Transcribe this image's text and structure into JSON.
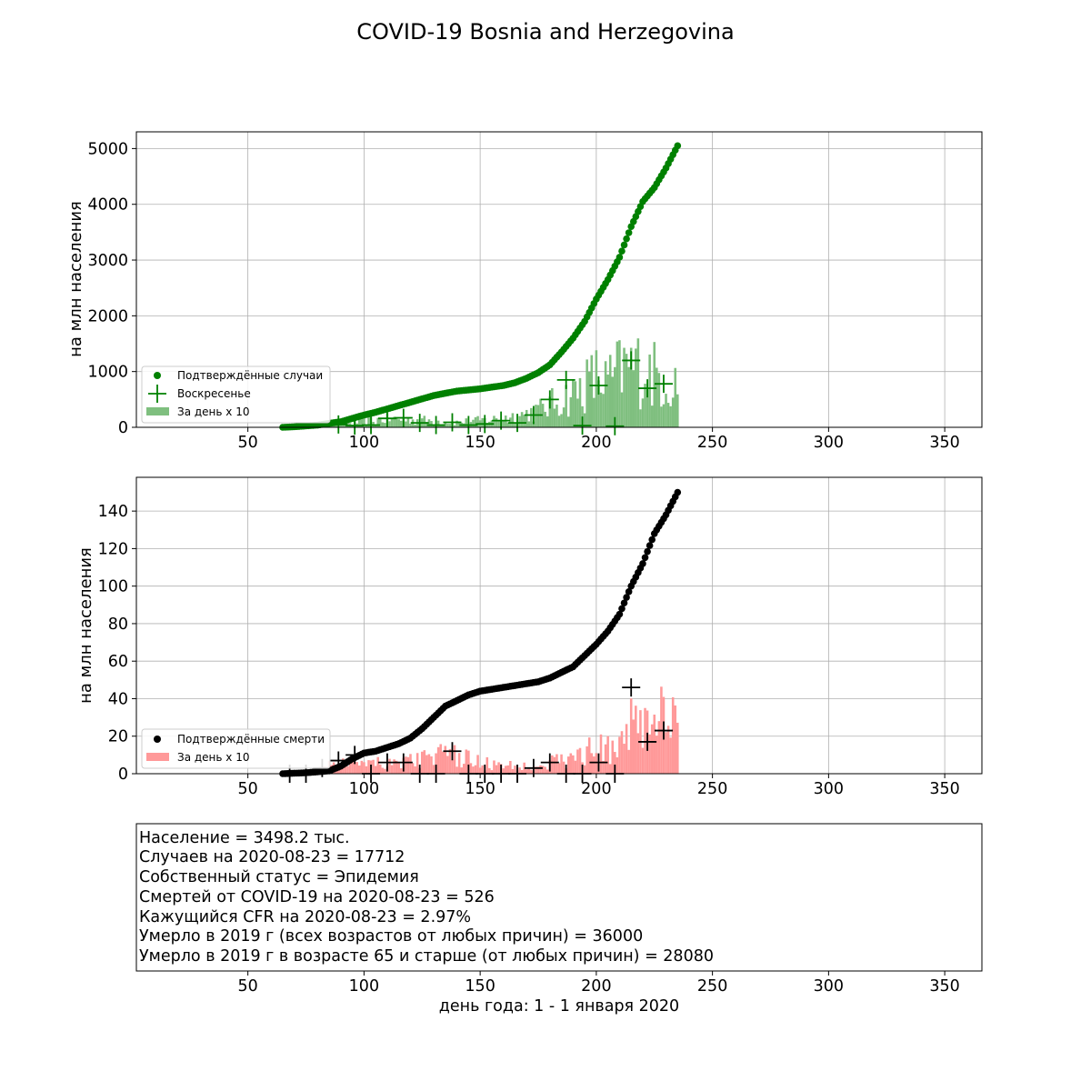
{
  "figure": {
    "title": "COVID-19 Bosnia and Herzegovina",
    "xlabel": "день года: 1 - 1 января 2020"
  },
  "colors": {
    "cases": "#008000",
    "cases_bar": "#7fbf7f",
    "deaths": "#000000",
    "deaths_bar": "#ff9999",
    "grid": "#b0b0b0"
  },
  "info": {
    "lines": [
      "Население = 3498.2 тыс.",
      "Случаев на 2020-08-23 = 17712",
      "Собственный статус = Эпидемия",
      "Смертей от COVID-19 на 2020-08-23 = 526",
      "Кажущийся CFR на 2020-08-23 = 2.97%",
      "Умерло в 2019 г (всех возрастов от любых причин) = 36000",
      "Умерло в 2019 г в возрасте 65 и старше (от любых причин) = 28080"
    ]
  },
  "chart_data": [
    {
      "type": "scatter",
      "ylabel": "на млн населения",
      "xlim": [
        2,
        366
      ],
      "ylim": [
        0,
        5300
      ],
      "xticks": [
        50,
        100,
        150,
        200,
        250,
        300,
        350
      ],
      "yticks": [
        0,
        1000,
        2000,
        3000,
        4000,
        5000
      ],
      "grid": true,
      "legend": {
        "position": "lower-left",
        "entries": [
          {
            "marker": "dot",
            "label": "Подтверждённые случаи"
          },
          {
            "marker": "plus",
            "label": "Воскресенье"
          },
          {
            "marker": "bar",
            "label": "За день x 10"
          }
        ]
      },
      "cumulative_anchors": {
        "x": [
          65,
          70,
          80,
          90,
          95,
          100,
          105,
          110,
          115,
          120,
          125,
          130,
          140,
          150,
          155,
          160,
          165,
          170,
          175,
          180,
          185,
          190,
          195,
          200,
          205,
          210,
          215,
          220,
          225,
          230,
          235
        ],
        "y": [
          0,
          10,
          40,
          100,
          160,
          220,
          270,
          330,
          390,
          450,
          510,
          570,
          650,
          690,
          720,
          750,
          800,
          880,
          980,
          1120,
          1350,
          1600,
          1900,
          2300,
          2650,
          3050,
          3600,
          4050,
          4300,
          4650,
          5050
        ]
      },
      "daily_x10_anchors": {
        "x": [
          65,
          80,
          95,
          110,
          125,
          140,
          155,
          165,
          175,
          185,
          190,
          195,
          200,
          205,
          210,
          215,
          220,
          225,
          230,
          235
        ],
        "y": [
          0,
          10,
          80,
          150,
          130,
          90,
          140,
          200,
          300,
          500,
          600,
          750,
          900,
          800,
          1000,
          1100,
          1050,
          950,
          850,
          800
        ]
      },
      "sundays": {
        "x": [
          89,
          96,
          103,
          110,
          117,
          124,
          131,
          138,
          145,
          152,
          159,
          166,
          173,
          180,
          187,
          194,
          201,
          208,
          215,
          222,
          229
        ],
        "y": [
          50,
          30,
          40,
          160,
          170,
          80,
          40,
          90,
          40,
          60,
          120,
          80,
          220,
          500,
          850,
          30,
          750,
          20,
          1200,
          700,
          780
        ]
      }
    },
    {
      "type": "scatter",
      "ylabel": "на млн населения",
      "xlim": [
        2,
        366
      ],
      "ylim": [
        0,
        158
      ],
      "xticks": [
        50,
        100,
        150,
        200,
        250,
        300,
        350
      ],
      "yticks": [
        0,
        20,
        40,
        60,
        80,
        100,
        120,
        140
      ],
      "grid": true,
      "legend": {
        "position": "lower-left",
        "entries": [
          {
            "marker": "dot",
            "label": "Подтверждённые смерти"
          },
          {
            "marker": "bar",
            "label": "За день x 10"
          }
        ]
      },
      "cumulative_anchors": {
        "x": [
          65,
          75,
          85,
          90,
          95,
          100,
          105,
          110,
          115,
          120,
          125,
          130,
          135,
          140,
          145,
          150,
          155,
          160,
          165,
          170,
          175,
          180,
          185,
          190,
          195,
          200,
          205,
          210,
          215,
          220,
          225,
          230,
          235
        ],
        "y": [
          0,
          0.5,
          1.5,
          4,
          8,
          11,
          12,
          14,
          16,
          19,
          24,
          30,
          36,
          39,
          42,
          44,
          45,
          46,
          47,
          48,
          49,
          51,
          54,
          57,
          63,
          69,
          76,
          85,
          100,
          112,
          128,
          138,
          150
        ]
      },
      "daily_x10_anchors": {
        "x": [
          65,
          80,
          90,
          100,
          110,
          120,
          130,
          140,
          150,
          160,
          170,
          180,
          190,
          200,
          205,
          210,
          215,
          220,
          225,
          230,
          235
        ],
        "y": [
          0,
          2,
          6,
          8,
          6,
          7,
          10,
          9,
          6,
          4,
          4,
          6,
          8,
          14,
          12,
          18,
          30,
          25,
          35,
          25,
          25
        ]
      },
      "sundays": {
        "x": [
          68,
          75,
          82,
          89,
          96,
          103,
          110,
          117,
          124,
          131,
          138,
          145,
          152,
          159,
          166,
          173,
          180,
          187,
          194,
          201,
          208,
          215,
          222,
          229
        ],
        "y": [
          0,
          0,
          3,
          7,
          10,
          0,
          6,
          6,
          0,
          0,
          12,
          0,
          0,
          0,
          0,
          3,
          6,
          0,
          0,
          6,
          0,
          46,
          17,
          23
        ]
      }
    }
  ]
}
